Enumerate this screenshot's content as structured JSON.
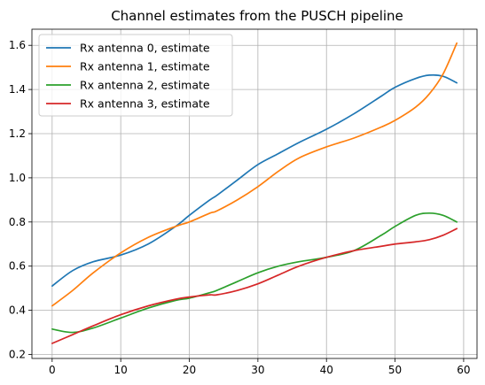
{
  "chart_data": {
    "type": "line",
    "title": "Channel estimates from the PUSCH pipeline",
    "xlabel": "",
    "ylabel": "",
    "xlim": [
      -2.95,
      61.95
    ],
    "ylim": [
      0.182,
      1.673
    ],
    "xticks": [
      0,
      10,
      20,
      30,
      40,
      50,
      60
    ],
    "yticks": [
      0.2,
      0.4,
      0.6,
      0.8,
      1.0,
      1.2,
      1.4,
      1.6
    ],
    "xtick_labels": [
      "0",
      "10",
      "20",
      "30",
      "40",
      "50",
      "60"
    ],
    "ytick_labels": [
      "0.2",
      "0.4",
      "0.6",
      "0.8",
      "1.0",
      "1.2",
      "1.4",
      "1.6"
    ],
    "grid": true,
    "legend_position": "top-left",
    "x": [
      0,
      3,
      6,
      10,
      14,
      18,
      20,
      23,
      24,
      27,
      30,
      33,
      36,
      40,
      44,
      48,
      50,
      53,
      55,
      57,
      59
    ],
    "series": [
      {
        "name": "Rx antenna 0, estimate",
        "color": "#1f77b4",
        "values": [
          0.51,
          0.58,
          0.62,
          0.65,
          0.7,
          0.78,
          0.83,
          0.9,
          0.92,
          0.99,
          1.06,
          1.11,
          1.16,
          1.22,
          1.29,
          1.37,
          1.41,
          1.45,
          1.465,
          1.46,
          1.43
        ]
      },
      {
        "name": "Rx antenna 1, estimate",
        "color": "#ff7f0e",
        "values": [
          0.42,
          0.49,
          0.57,
          0.66,
          0.73,
          0.78,
          0.8,
          0.84,
          0.85,
          0.9,
          0.96,
          1.03,
          1.09,
          1.14,
          1.18,
          1.23,
          1.26,
          1.32,
          1.38,
          1.47,
          1.61
        ]
      },
      {
        "name": "Rx antenna 2, estimate",
        "color": "#2ca02c",
        "values": [
          0.315,
          0.3,
          0.32,
          0.365,
          0.41,
          0.445,
          0.455,
          0.48,
          0.49,
          0.53,
          0.57,
          0.6,
          0.62,
          0.64,
          0.67,
          0.74,
          0.78,
          0.83,
          0.84,
          0.83,
          0.8
        ]
      },
      {
        "name": "Rx antenna 3, estimate",
        "color": "#d62728",
        "values": [
          0.25,
          0.29,
          0.33,
          0.38,
          0.42,
          0.45,
          0.46,
          0.47,
          0.47,
          0.49,
          0.52,
          0.56,
          0.6,
          0.64,
          0.67,
          0.69,
          0.7,
          0.71,
          0.72,
          0.74,
          0.77
        ]
      }
    ]
  }
}
